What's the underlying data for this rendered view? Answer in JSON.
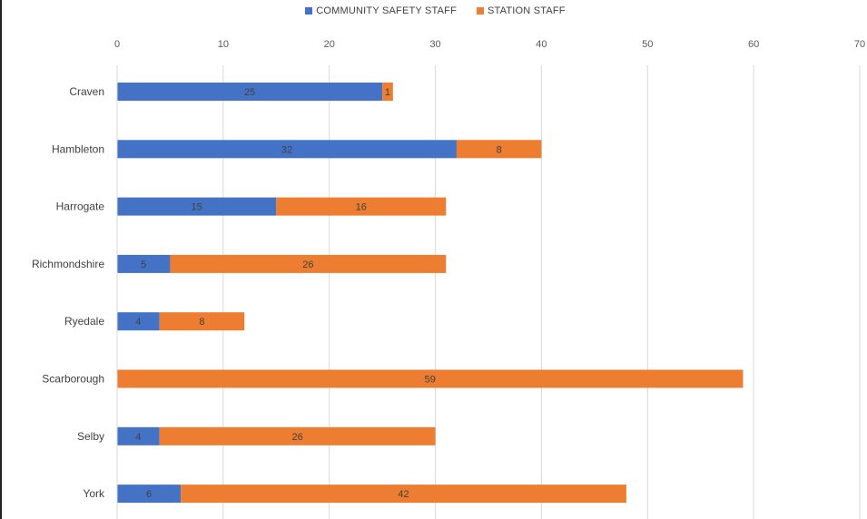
{
  "chart_data": {
    "type": "bar",
    "orientation": "horizontal",
    "stacked": true,
    "categories": [
      "Craven",
      "Hambleton",
      "Harrogate",
      "Richmondshire",
      "Ryedale",
      "Scarborough",
      "Selby",
      "York"
    ],
    "series": [
      {
        "name": "COMMUNITY SAFETY STAFF",
        "color": "#4472C4",
        "values": [
          25,
          32,
          15,
          5,
          4,
          0,
          4,
          6
        ]
      },
      {
        "name": "STATION STAFF",
        "color": "#ED7D31",
        "values": [
          1,
          8,
          16,
          26,
          8,
          59,
          26,
          42
        ]
      }
    ],
    "xlim": [
      0,
      70
    ],
    "xticks": [
      0,
      10,
      20,
      30,
      40,
      50,
      60,
      70
    ],
    "grid": true,
    "legend_position": "top"
  }
}
